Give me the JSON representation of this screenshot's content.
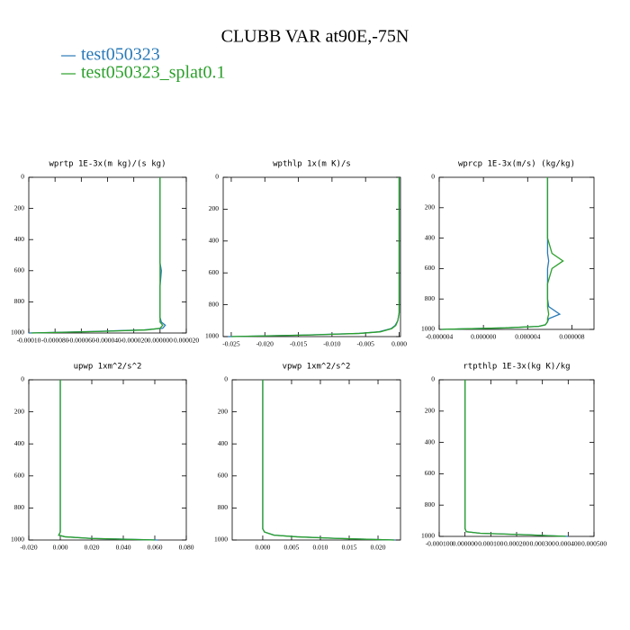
{
  "title": "CLUBB VAR at90E,-75N",
  "legend": [
    {
      "name": "test050323",
      "color": "#2a7ab8"
    },
    {
      "name": "test050323_splat0.1",
      "color": "#2ca02c"
    }
  ],
  "chart_data": [
    {
      "type": "line",
      "title": "wprtp  1E-3x(m kg)/(s kg)",
      "xlim": [
        -0.0001,
        2e-05
      ],
      "xticks": [
        {
          "value": -0.0001,
          "label": "-0.00010"
        },
        {
          "value": -8e-05,
          "label": "-0.000080"
        },
        {
          "value": -6e-05,
          "label": "-0.000060"
        },
        {
          "value": -4e-05,
          "label": "-0.000040"
        },
        {
          "value": -2e-05,
          "label": "-0.000020"
        },
        {
          "value": 0,
          "label": "0.000000"
        },
        {
          "value": 2e-05,
          "label": "0.000020"
        }
      ],
      "ylim": [
        1000,
        0
      ],
      "yticks": [
        0,
        200,
        400,
        600,
        800,
        1000
      ],
      "y": [
        0,
        200,
        400,
        500,
        550,
        600,
        700,
        800,
        850,
        900,
        930,
        950,
        970,
        980,
        990,
        1000
      ],
      "series": [
        {
          "values": [
            0,
            0,
            0,
            0,
            0,
            1e-06,
            0,
            0,
            0,
            0,
            1e-06,
            4e-06,
            2e-06,
            -1.2e-05,
            -5e-05,
            -0.0001
          ]
        },
        {
          "values": [
            0,
            0,
            0,
            0,
            0,
            0,
            0,
            0,
            0,
            0,
            0,
            2e-06,
            0,
            -1e-05,
            -4.5e-05,
            -9.8e-05
          ]
        }
      ]
    },
    {
      "type": "line",
      "title": "wpthlp  1x(m K)/s",
      "xlim": [
        -0.0262,
        0.0002
      ],
      "xticks": [
        -0.025,
        {
          "value": -0.02,
          "label": "-0.020"
        },
        -0.015,
        {
          "value": -0.01,
          "label": "-0.010"
        },
        -0.005,
        {
          "value": 0,
          "label": "0.000"
        }
      ],
      "ylim": [
        1000,
        0
      ],
      "yticks": [
        0,
        200,
        400,
        600,
        800,
        1000
      ],
      "y": [
        0,
        200,
        400,
        500,
        550,
        600,
        700,
        800,
        850,
        900,
        930,
        950,
        970,
        980,
        990,
        1000
      ],
      "series": [
        {
          "values": [
            0,
            0,
            0,
            0,
            0,
            0,
            0,
            0,
            0,
            -0.0002,
            -0.0006,
            -0.0012,
            -0.003,
            -0.006,
            -0.014,
            -0.0255
          ]
        },
        {
          "values": [
            0,
            0,
            0,
            0,
            0,
            0,
            0,
            0,
            0,
            -0.0002,
            -0.0005,
            -0.0011,
            -0.0028,
            -0.0058,
            -0.0135,
            -0.025
          ]
        }
      ]
    },
    {
      "type": "line",
      "title": "wprcp  1E-3x(m/s) (kg/kg)",
      "xlim": [
        -4e-06,
        1e-05
      ],
      "xticks": [
        {
          "value": -4e-06,
          "label": "-0.000004"
        },
        {
          "value": 0,
          "label": "0.000000"
        },
        {
          "value": 4e-06,
          "label": "0.000004"
        },
        {
          "value": 8e-06,
          "label": "0.000008"
        }
      ],
      "ylim": [
        1000,
        0
      ],
      "yticks": [
        0,
        200,
        400,
        600,
        800,
        1000
      ],
      "y": [
        0,
        200,
        400,
        500,
        550,
        600,
        700,
        800,
        850,
        900,
        930,
        950,
        970,
        980,
        990,
        1000
      ],
      "series": [
        {
          "values": [
            5.8e-06,
            5.8e-06,
            5.8e-06,
            5.8e-06,
            5.9e-06,
            5.8e-06,
            5.8e-06,
            5.8e-06,
            5.9e-06,
            6.9e-06,
            5.9e-06,
            5.8e-06,
            5.6e-06,
            5e-06,
            2e-06,
            -3.8e-06
          ]
        },
        {
          "values": [
            5.8e-06,
            5.8e-06,
            5.8e-06,
            6.2e-06,
            7.2e-06,
            6.2e-06,
            5.8e-06,
            5.8e-06,
            5.8e-06,
            5.9e-06,
            5.8e-06,
            5.8e-06,
            5.6e-06,
            5e-06,
            2e-06,
            -3.8e-06
          ]
        }
      ]
    },
    {
      "type": "line",
      "title": "upwp  1xm^2/s^2",
      "xlim": [
        -0.02,
        0.08
      ],
      "xticks": [
        {
          "value": -0.02,
          "label": "-0.020"
        },
        {
          "value": 0,
          "label": "0.000"
        },
        {
          "value": 0.02,
          "label": "0.020"
        },
        {
          "value": 0.04,
          "label": "0.040"
        },
        {
          "value": 0.06,
          "label": "0.060"
        },
        {
          "value": 0.08,
          "label": "0.080"
        }
      ],
      "ylim": [
        1000,
        0
      ],
      "yticks": [
        0,
        200,
        400,
        600,
        800,
        1000
      ],
      "y": [
        0,
        200,
        400,
        500,
        550,
        600,
        700,
        800,
        850,
        900,
        930,
        950,
        970,
        980,
        990,
        1000
      ],
      "series": [
        {
          "values": [
            0,
            0,
            0,
            0,
            0,
            0,
            0,
            0,
            0,
            0,
            0,
            0,
            -0.001,
            0.003,
            0.02,
            0.062
          ]
        },
        {
          "values": [
            0,
            0,
            0,
            0,
            0,
            0,
            0,
            0,
            0,
            0,
            0,
            0,
            -0.001,
            0.003,
            0.019,
            0.06
          ]
        }
      ]
    },
    {
      "type": "line",
      "title": "vpwp  1xm^2/s^2",
      "xlim": [
        -0.0053,
        0.0239
      ],
      "xticks": [
        {
          "value": 0,
          "label": "0.000"
        },
        0.005,
        {
          "value": 0.01,
          "label": "0.010"
        },
        0.015,
        {
          "value": 0.02,
          "label": "0.020"
        }
      ],
      "ylim": [
        1000,
        0
      ],
      "yticks": [
        0,
        200,
        400,
        600,
        800,
        1000
      ],
      "y": [
        0,
        200,
        400,
        500,
        550,
        600,
        700,
        800,
        850,
        900,
        930,
        950,
        970,
        980,
        990,
        1000
      ],
      "series": [
        {
          "values": [
            0,
            0,
            0,
            0,
            0,
            0,
            0,
            0,
            0,
            0,
            0,
            0.0003,
            0.002,
            0.006,
            0.013,
            0.023
          ]
        },
        {
          "values": [
            0,
            0,
            0,
            0,
            0,
            0,
            0,
            0,
            0,
            0,
            0,
            0.0003,
            0.0019,
            0.0058,
            0.0128,
            0.0228
          ]
        }
      ]
    },
    {
      "type": "line",
      "title": "rtpthlp  1E-3x(kg K)/kg",
      "xlim": [
        -0.0001,
        0.0005
      ],
      "xticks": [
        {
          "value": -0.0001,
          "label": "-0.000100"
        },
        {
          "value": 0,
          "label": "0.000000"
        },
        {
          "value": 0.0001,
          "label": "0.000100"
        },
        {
          "value": 0.0002,
          "label": "0.000200"
        },
        {
          "value": 0.0003,
          "label": "0.000300"
        },
        {
          "value": 0.0004,
          "label": "0.000400"
        },
        {
          "value": 0.0005,
          "label": "0.000500"
        }
      ],
      "ylim": [
        1000,
        0
      ],
      "yticks": [
        0,
        200,
        400,
        600,
        800,
        1000
      ],
      "y": [
        0,
        200,
        400,
        500,
        550,
        600,
        700,
        800,
        850,
        900,
        930,
        950,
        970,
        980,
        990,
        1000
      ],
      "series": [
        {
          "values": [
            0,
            0,
            0,
            0,
            0,
            0,
            0,
            0,
            0,
            0,
            0,
            0,
            5e-06,
            6e-05,
            0.00025,
            0.0004
          ]
        },
        {
          "values": [
            0,
            0,
            0,
            0,
            0,
            0,
            0,
            0,
            0,
            0,
            0,
            0,
            5e-06,
            5.8e-05,
            0.00024,
            0.00039
          ]
        }
      ]
    }
  ]
}
